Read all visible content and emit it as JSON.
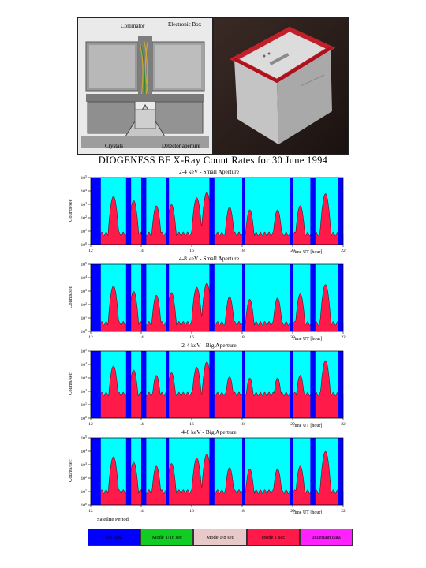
{
  "photos": {
    "left_labels": {
      "collimator": "Collimator",
      "electronic_box": "Electronic Box",
      "crystals": "Crystals",
      "detector_aperture": "Detector aperture"
    }
  },
  "figure_title": "DIOGENESS BF X-Ray Count Rates for 30 June 1994",
  "x_axis_label": "Time UT [hour]",
  "y_axis_label": "Counts/sec",
  "satellite_period_label": "Satellite Period",
  "legend": [
    {
      "label": "No data",
      "color": "#0000ff"
    },
    {
      "label": "Mode 1/16 sec",
      "color": "#11cc22"
    },
    {
      "label": "Mode 1/8 sec",
      "color": "#e8c8c8"
    },
    {
      "label": "Mode 1 sec",
      "color": "#ff1a4a"
    },
    {
      "label": "uncertain data",
      "color": "#ff22ff"
    }
  ],
  "chart_data": [
    {
      "type": "area",
      "title": "2-4 keV - Small Aperture",
      "xlabel": "Time UT [hour]",
      "ylabel": "Counts/sec",
      "xlim": [
        12,
        22
      ],
      "ylim_log10": [
        0,
        5
      ],
      "x_ticks": [
        12,
        14,
        16,
        18,
        20,
        22
      ],
      "y_tick_exponents": [
        0,
        1,
        2,
        3,
        4,
        5
      ],
      "no_data_intervals": [
        [
          12,
          12.4
        ],
        [
          13.4,
          13.6
        ],
        [
          14.0,
          14.2
        ],
        [
          15.0,
          15.1
        ],
        [
          16.7,
          16.9
        ],
        [
          18.0,
          18.1
        ],
        [
          19.9,
          20.0
        ],
        [
          20.7,
          20.9
        ],
        [
          21.8,
          22.0
        ]
      ],
      "peaks": [
        [
          12.9,
          3.6
        ],
        [
          13.7,
          3.3
        ],
        [
          14.6,
          2.9
        ],
        [
          15.2,
          3.0
        ],
        [
          16.2,
          3.5
        ],
        [
          16.6,
          3.9
        ],
        [
          17.5,
          2.8
        ],
        [
          18.3,
          2.6
        ],
        [
          19.4,
          2.6
        ],
        [
          20.3,
          2.9
        ],
        [
          21.3,
          3.8
        ]
      ],
      "baseline_log10": 0.8
    },
    {
      "type": "area",
      "title": "4-8 keV - Small Aperture",
      "xlabel": "Time UT [hour]",
      "ylabel": "Counts/sec",
      "xlim": [
        12,
        22
      ],
      "ylim_log10": [
        0,
        5
      ],
      "x_ticks": [
        12,
        14,
        16,
        18,
        20,
        22
      ],
      "y_tick_exponents": [
        0,
        1,
        2,
        3,
        4,
        5
      ],
      "no_data_intervals": [
        [
          12,
          12.4
        ],
        [
          13.4,
          13.6
        ],
        [
          14.0,
          14.2
        ],
        [
          15.0,
          15.1
        ],
        [
          16.7,
          16.9
        ],
        [
          18.0,
          18.1
        ],
        [
          19.9,
          20.0
        ],
        [
          20.7,
          20.9
        ],
        [
          21.8,
          22.0
        ]
      ],
      "peaks": [
        [
          12.9,
          3.4
        ],
        [
          13.7,
          3.0
        ],
        [
          14.6,
          2.7
        ],
        [
          15.2,
          2.9
        ],
        [
          16.2,
          3.3
        ],
        [
          16.6,
          3.6
        ],
        [
          17.5,
          2.6
        ],
        [
          18.3,
          2.4
        ],
        [
          19.4,
          2.5
        ],
        [
          20.3,
          2.8
        ],
        [
          21.3,
          3.5
        ]
      ],
      "baseline_log10": 0.6
    },
    {
      "type": "area",
      "title": "2-4 keV - Big Aperture",
      "xlabel": "Time UT [hour]",
      "ylabel": "Counts/sec",
      "xlim": [
        12,
        22
      ],
      "ylim_log10": [
        0,
        5
      ],
      "x_ticks": [
        12,
        14,
        16,
        18,
        20,
        22
      ],
      "y_tick_exponents": [
        0,
        1,
        2,
        3,
        4,
        5
      ],
      "no_data_intervals": [
        [
          12,
          12.4
        ],
        [
          13.4,
          13.6
        ],
        [
          14.0,
          14.2
        ],
        [
          15.0,
          15.1
        ],
        [
          16.7,
          16.9
        ],
        [
          18.0,
          18.1
        ],
        [
          19.9,
          20.0
        ],
        [
          20.7,
          20.9
        ],
        [
          21.8,
          22.0
        ]
      ],
      "peaks": [
        [
          12.9,
          3.9
        ],
        [
          13.7,
          3.6
        ],
        [
          14.6,
          3.2
        ],
        [
          15.2,
          3.4
        ],
        [
          16.2,
          3.8
        ],
        [
          16.6,
          4.2
        ],
        [
          17.5,
          3.1
        ],
        [
          18.3,
          3.0
        ],
        [
          19.4,
          3.0
        ],
        [
          20.3,
          3.2
        ],
        [
          21.3,
          4.3
        ]
      ],
      "baseline_log10": 1.8
    },
    {
      "type": "area",
      "title": "4-8 keV - Big Aperture",
      "xlabel": "Time UT [hour]",
      "ylabel": "Counts/sec",
      "xlim": [
        12,
        22
      ],
      "ylim_log10": [
        0,
        5
      ],
      "x_ticks": [
        12,
        14,
        16,
        18,
        20,
        22
      ],
      "y_tick_exponents": [
        0,
        1,
        2,
        3,
        4,
        5
      ],
      "no_data_intervals": [
        [
          12,
          12.4
        ],
        [
          13.4,
          13.6
        ],
        [
          14.0,
          14.2
        ],
        [
          15.0,
          15.1
        ],
        [
          16.7,
          16.9
        ],
        [
          18.0,
          18.1
        ],
        [
          19.9,
          20.0
        ],
        [
          20.7,
          20.9
        ],
        [
          21.8,
          22.0
        ]
      ],
      "peaks": [
        [
          12.9,
          3.6
        ],
        [
          13.7,
          3.2
        ],
        [
          14.6,
          2.9
        ],
        [
          15.2,
          3.1
        ],
        [
          16.2,
          3.5
        ],
        [
          16.6,
          3.8
        ],
        [
          17.5,
          2.8
        ],
        [
          18.3,
          2.7
        ],
        [
          19.4,
          2.7
        ],
        [
          20.3,
          2.9
        ],
        [
          21.3,
          4.0
        ]
      ],
      "baseline_log10": 1.0
    }
  ]
}
